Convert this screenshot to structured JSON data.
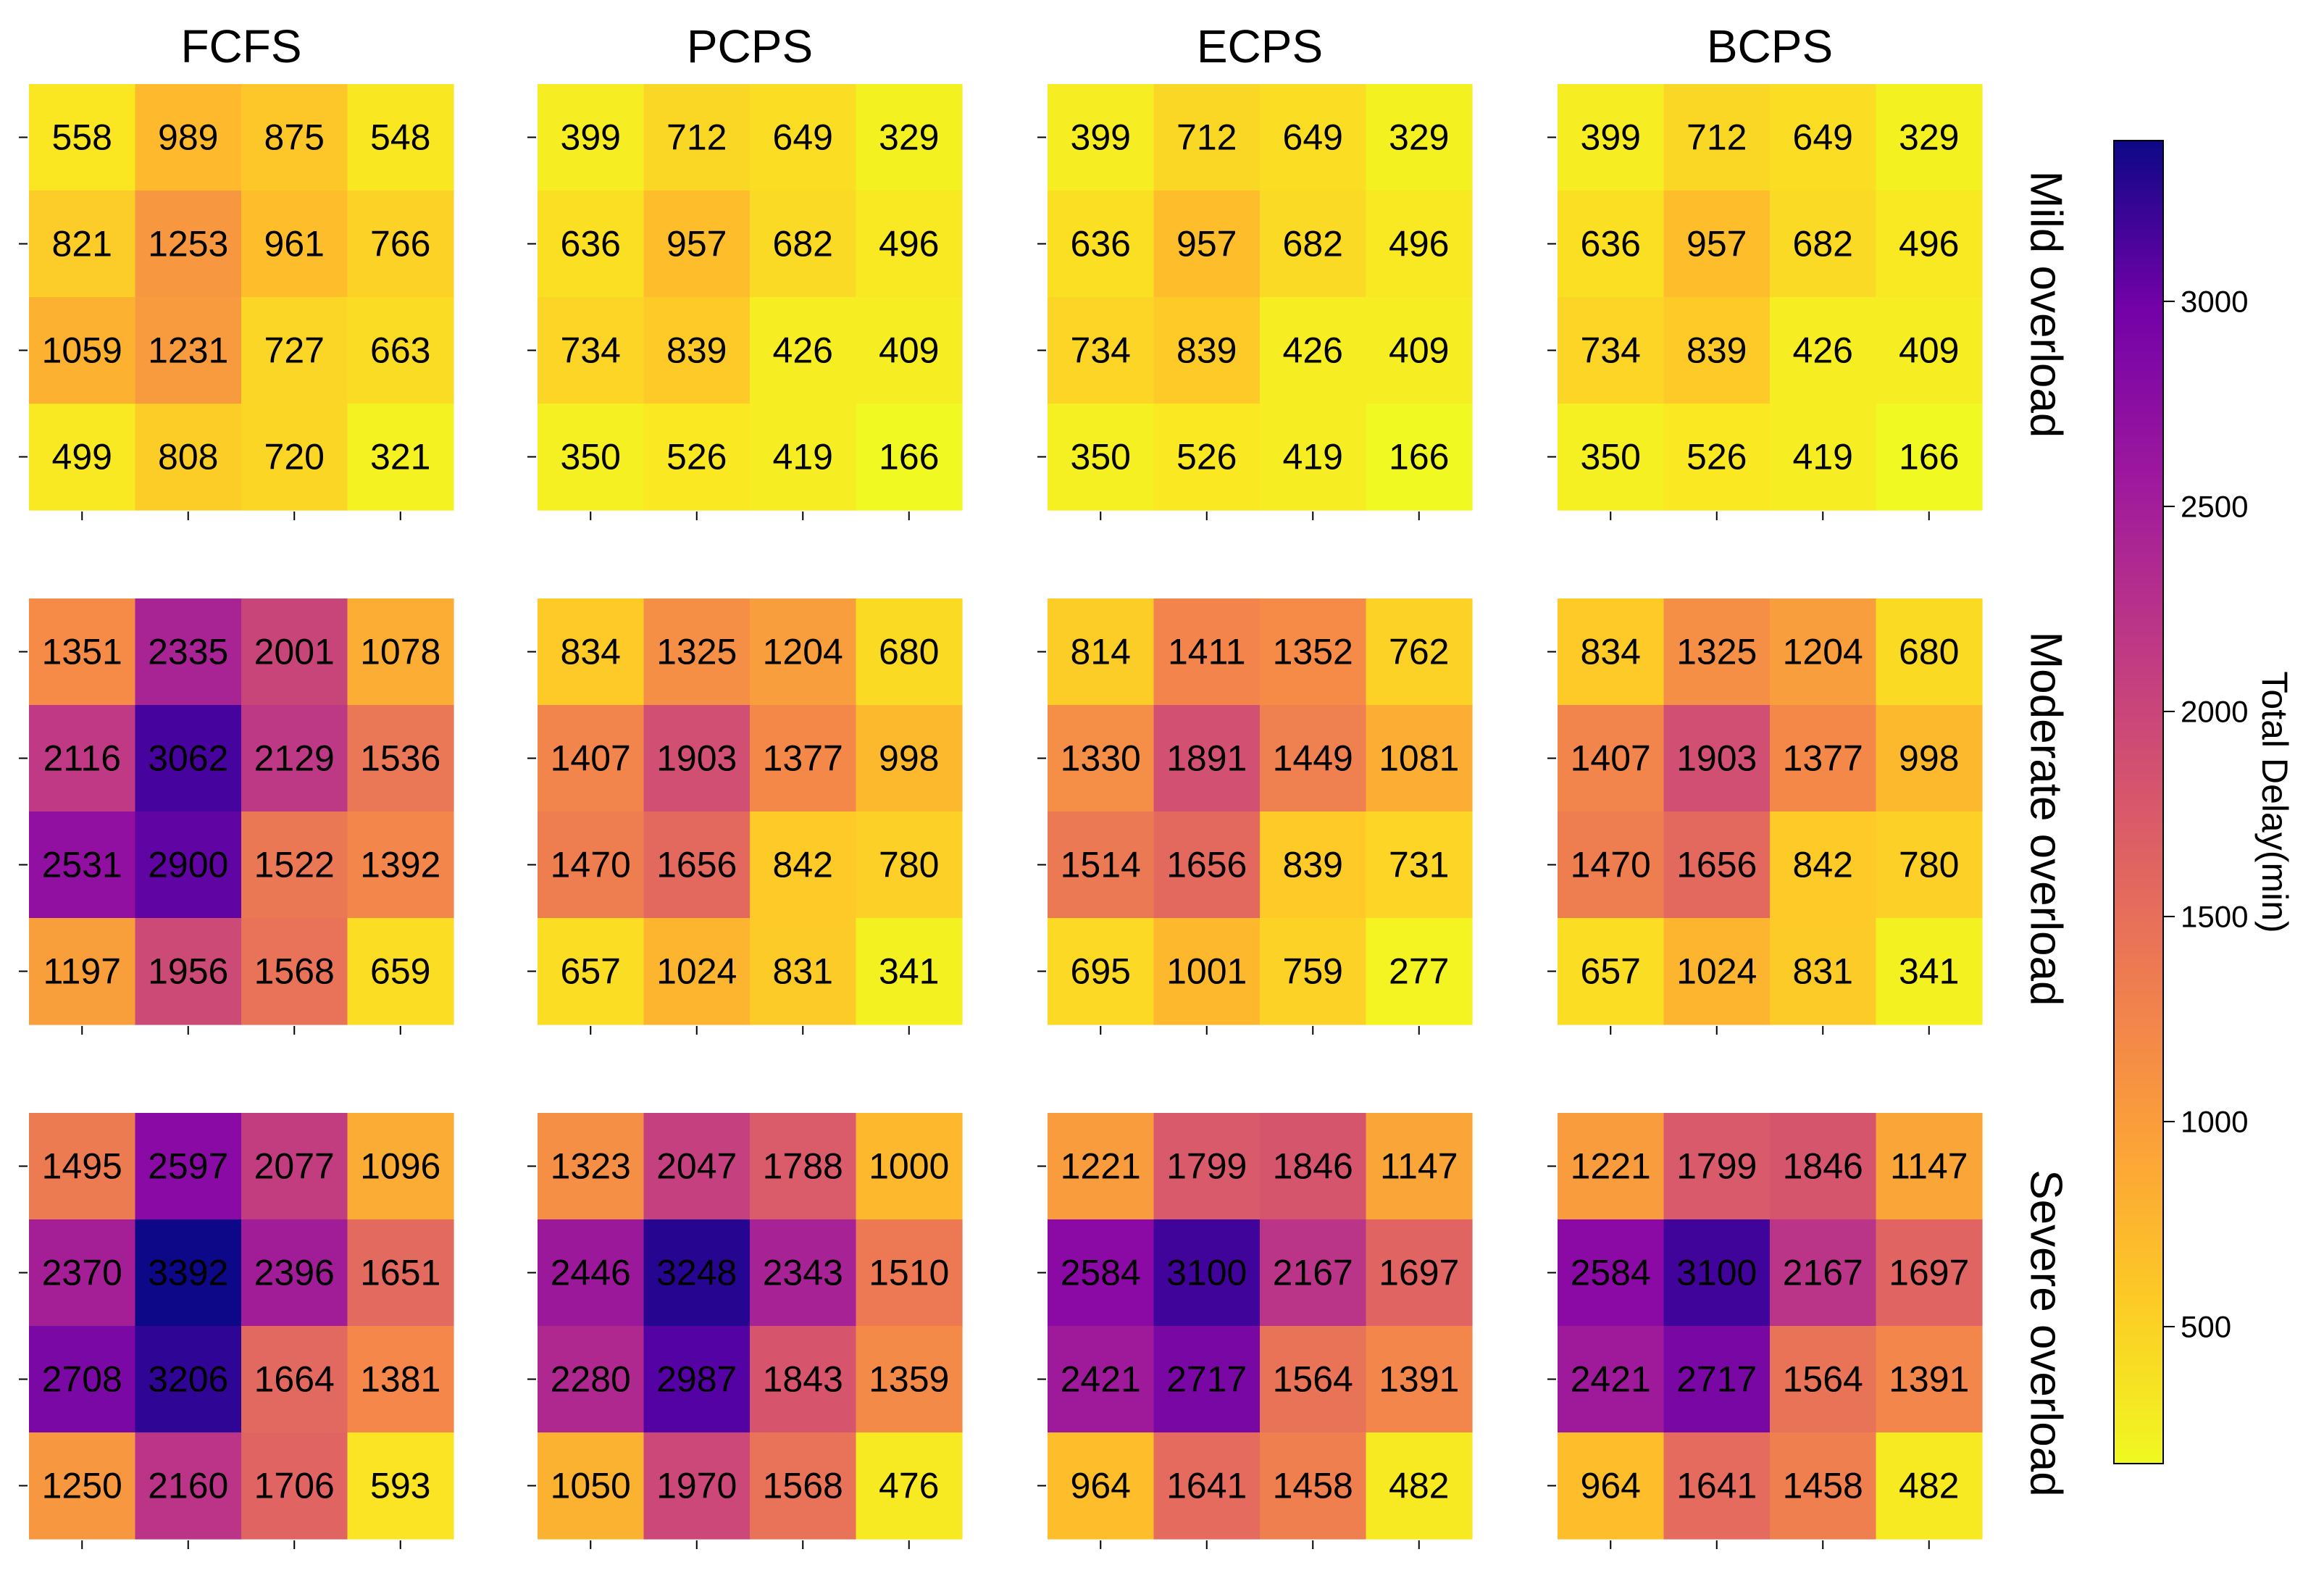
{
  "chart_data": {
    "type": "heatmap",
    "columns": [
      "FCFS",
      "PCPS",
      "ECPS",
      "BCPS"
    ],
    "rows": [
      "Mild overload",
      "Moderate overload",
      "Severe overload"
    ],
    "colorbar": {
      "label": "Total Delay(min)",
      "ticks": [
        500,
        1000,
        1500,
        2000,
        2500,
        3000
      ],
      "tick_labels": [
        "500",
        "1000",
        "1500",
        "2000",
        "2500",
        "3000"
      ],
      "range": [
        166,
        3392
      ],
      "colormap": "plasma_r"
    },
    "panels": [
      [
        [
          [
            558,
            989,
            875,
            548
          ],
          [
            821,
            1253,
            961,
            766
          ],
          [
            1059,
            1231,
            727,
            663
          ],
          [
            499,
            808,
            720,
            321
          ]
        ],
        [
          [
            399,
            712,
            649,
            329
          ],
          [
            636,
            957,
            682,
            496
          ],
          [
            734,
            839,
            426,
            409
          ],
          [
            350,
            526,
            419,
            166
          ]
        ],
        [
          [
            399,
            712,
            649,
            329
          ],
          [
            636,
            957,
            682,
            496
          ],
          [
            734,
            839,
            426,
            409
          ],
          [
            350,
            526,
            419,
            166
          ]
        ],
        [
          [
            399,
            712,
            649,
            329
          ],
          [
            636,
            957,
            682,
            496
          ],
          [
            734,
            839,
            426,
            409
          ],
          [
            350,
            526,
            419,
            166
          ]
        ]
      ],
      [
        [
          [
            1351,
            2335,
            2001,
            1078
          ],
          [
            2116,
            3062,
            2129,
            1536
          ],
          [
            2531,
            2900,
            1522,
            1392
          ],
          [
            1197,
            1956,
            1568,
            659
          ]
        ],
        [
          [
            834,
            1325,
            1204,
            680
          ],
          [
            1407,
            1903,
            1377,
            998
          ],
          [
            1470,
            1656,
            842,
            780
          ],
          [
            657,
            1024,
            831,
            341
          ]
        ],
        [
          [
            814,
            1411,
            1352,
            762
          ],
          [
            1330,
            1891,
            1449,
            1081
          ],
          [
            1514,
            1656,
            839,
            731
          ],
          [
            695,
            1001,
            759,
            277
          ]
        ],
        [
          [
            834,
            1325,
            1204,
            680
          ],
          [
            1407,
            1903,
            1377,
            998
          ],
          [
            1470,
            1656,
            842,
            780
          ],
          [
            657,
            1024,
            831,
            341
          ]
        ]
      ],
      [
        [
          [
            1495,
            2597,
            2077,
            1096
          ],
          [
            2370,
            3392,
            2396,
            1651
          ],
          [
            2708,
            3206,
            1664,
            1381
          ],
          [
            1250,
            2160,
            1706,
            593
          ]
        ],
        [
          [
            1323,
            2047,
            1788,
            1000
          ],
          [
            2446,
            3248,
            2343,
            1510
          ],
          [
            2280,
            2987,
            1843,
            1359
          ],
          [
            1050,
            1970,
            1568,
            476
          ]
        ],
        [
          [
            1221,
            1799,
            1846,
            1147
          ],
          [
            2584,
            3100,
            2167,
            1697
          ],
          [
            2421,
            2717,
            1564,
            1391
          ],
          [
            964,
            1641,
            1458,
            482
          ]
        ],
        [
          [
            1221,
            1799,
            1846,
            1147
          ],
          [
            2584,
            3100,
            2167,
            1697
          ],
          [
            2421,
            2717,
            1564,
            1391
          ],
          [
            964,
            1641,
            1458,
            482
          ]
        ]
      ]
    ]
  }
}
